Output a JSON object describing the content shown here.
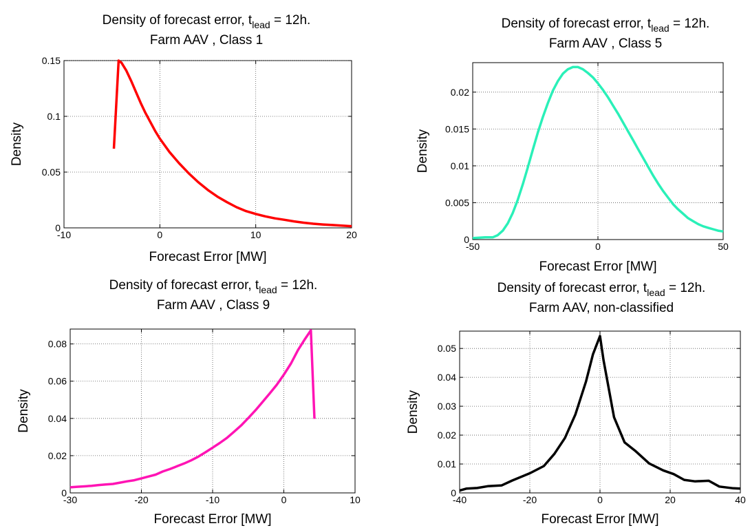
{
  "chart_data": [
    {
      "type": "line",
      "title": {
        "prefix": "Density of forecast error, t",
        "subscript": "lead",
        "suffix": " = 12h.",
        "line2": "Farm AAV , Class 1"
      },
      "xlabel": "Forecast Error [MW]",
      "ylabel": "Density",
      "xlim": [
        -10,
        20
      ],
      "ylim": [
        0,
        0.15
      ],
      "xticks": [
        -10,
        0,
        10,
        20
      ],
      "yticks": [
        0,
        0.05,
        0.1,
        0.15
      ],
      "xtick_labels": [
        "-10",
        "0",
        "10",
        "20"
      ],
      "ytick_labels": [
        "0",
        "0.05",
        "0.1",
        "0.15"
      ],
      "grid": true,
      "color": "#ff0000",
      "series": [
        {
          "x": [
            -4.8,
            -4.3,
            -4.0,
            -3.5,
            -3.0,
            -2.5,
            -2.0,
            -1.5,
            -1.0,
            -0.5,
            0,
            1,
            2,
            3,
            4,
            5,
            6,
            7,
            8,
            9,
            10,
            11,
            12,
            13,
            14,
            15,
            16,
            17,
            18,
            19,
            20
          ],
          "y": [
            0.071,
            0.15,
            0.148,
            0.141,
            0.132,
            0.122,
            0.112,
            0.103,
            0.095,
            0.087,
            0.08,
            0.068,
            0.058,
            0.049,
            0.041,
            0.034,
            0.028,
            0.023,
            0.0185,
            0.015,
            0.0125,
            0.0103,
            0.0085,
            0.0072,
            0.0058,
            0.0046,
            0.0037,
            0.003,
            0.0025,
            0.002,
            0.0015
          ]
        }
      ]
    },
    {
      "type": "line",
      "title": {
        "prefix": "Density of forecast error, t",
        "subscript": "lead",
        "suffix": " = 12h.",
        "line2": "Farm AAV , Class 5"
      },
      "xlabel": "Forecast Error [MW]",
      "ylabel": "Density",
      "xlim": [
        -50,
        50
      ],
      "ylim": [
        0,
        0.024
      ],
      "xticks": [
        -50,
        0,
        50
      ],
      "yticks": [
        0,
        0.005,
        0.01,
        0.015,
        0.02
      ],
      "xtick_labels": [
        "-50",
        "0",
        "50"
      ],
      "ytick_labels": [
        "0",
        "0.005",
        "0.01",
        "0.015",
        "0.02"
      ],
      "grid": true,
      "color": "#2af0b8",
      "series": [
        {
          "x": [
            -50,
            -45,
            -42,
            -40,
            -38,
            -36,
            -34,
            -32,
            -30,
            -28,
            -26,
            -24,
            -22,
            -20,
            -18,
            -16,
            -14,
            -12,
            -10,
            -8,
            -6,
            -4,
            -2,
            0,
            2,
            4,
            6,
            8,
            10,
            12,
            14,
            16,
            18,
            20,
            22,
            24,
            26,
            28,
            30,
            32,
            34,
            36,
            38,
            40,
            42,
            44,
            46,
            48,
            50
          ],
          "y": [
            0.0002,
            0.0003,
            0.0003,
            0.0006,
            0.0012,
            0.0022,
            0.0036,
            0.0054,
            0.0075,
            0.0098,
            0.0122,
            0.0145,
            0.0166,
            0.0185,
            0.0202,
            0.0215,
            0.0225,
            0.0231,
            0.0234,
            0.0234,
            0.0231,
            0.0226,
            0.022,
            0.0212,
            0.0203,
            0.0193,
            0.0182,
            0.0171,
            0.0159,
            0.0147,
            0.0135,
            0.0123,
            0.0111,
            0.0099,
            0.0087,
            0.0076,
            0.0066,
            0.0057,
            0.0048,
            0.0041,
            0.0035,
            0.0029,
            0.0025,
            0.0021,
            0.0018,
            0.0016,
            0.0014,
            0.0012,
            0.0011
          ]
        }
      ]
    },
    {
      "type": "line",
      "title": {
        "prefix": "Density of forecast error, t",
        "subscript": "lead",
        "suffix": " = 12h.",
        "line2": "Farm AAV , Class 9"
      },
      "xlabel": "Forecast Error [MW]",
      "ylabel": "Density",
      "xlim": [
        -30,
        10
      ],
      "ylim": [
        0,
        0.088
      ],
      "xticks": [
        -30,
        -20,
        -10,
        0,
        10
      ],
      "yticks": [
        0,
        0.02,
        0.04,
        0.06,
        0.08
      ],
      "xtick_labels": [
        "-30",
        "-20",
        "-10",
        "0",
        "10"
      ],
      "ytick_labels": [
        "0",
        "0.02",
        "0.04",
        "0.06",
        "0.08"
      ],
      "grid": true,
      "color": "#ff14b4",
      "series": [
        {
          "x": [
            -30,
            -29,
            -28,
            -27,
            -26,
            -25,
            -24,
            -23,
            -22,
            -21,
            -20,
            -19,
            -18,
            -17,
            -16,
            -15,
            -14,
            -13,
            -12,
            -11,
            -10,
            -9,
            -8,
            -7,
            -6,
            -5,
            -4,
            -3,
            -2,
            -1,
            0,
            1,
            2,
            3,
            3.8,
            4.3
          ],
          "y": [
            0.003,
            0.0033,
            0.0035,
            0.0038,
            0.0042,
            0.0045,
            0.0048,
            0.0055,
            0.0062,
            0.0068,
            0.0078,
            0.0088,
            0.0098,
            0.0115,
            0.0128,
            0.0143,
            0.0158,
            0.0175,
            0.0195,
            0.0218,
            0.0243,
            0.0268,
            0.0295,
            0.0328,
            0.0362,
            0.0402,
            0.0443,
            0.0488,
            0.0533,
            0.058,
            0.0635,
            0.0695,
            0.0768,
            0.0828,
            0.0873,
            0.0398
          ]
        }
      ]
    },
    {
      "type": "line",
      "title": {
        "prefix": "Density of forecast error, t",
        "subscript": "lead",
        "suffix": " = 12h.",
        "line2": "Farm AAV, non-classified"
      },
      "xlabel": "Forecast Error [MW]",
      "ylabel": "Density",
      "xlim": [
        -40,
        40
      ],
      "ylim": [
        0,
        0.056
      ],
      "xticks": [
        -40,
        -20,
        0,
        20,
        40
      ],
      "yticks": [
        0,
        0.01,
        0.02,
        0.03,
        0.04,
        0.05
      ],
      "xtick_labels": [
        "-40",
        "-20",
        "0",
        "20",
        "40"
      ],
      "ytick_labels": [
        "0",
        "0.01",
        "0.02",
        "0.03",
        "0.04",
        "0.05"
      ],
      "grid": true,
      "color": "#000000",
      "series": [
        {
          "x": [
            -40,
            -38,
            -35,
            -32,
            -28,
            -25,
            -20,
            -16,
            -13,
            -10,
            -7,
            -4,
            -2,
            0,
            1,
            4,
            7,
            10,
            14,
            18,
            21,
            24,
            27,
            31,
            34,
            38,
            40
          ],
          "y": [
            0.0008,
            0.0015,
            0.0017,
            0.0023,
            0.0026,
            0.0043,
            0.0068,
            0.0093,
            0.0135,
            0.019,
            0.0272,
            0.0385,
            0.048,
            0.0543,
            0.046,
            0.0262,
            0.0175,
            0.0146,
            0.0102,
            0.0078,
            0.0065,
            0.0045,
            0.004,
            0.0042,
            0.0022,
            0.0016,
            0.0015
          ]
        }
      ]
    }
  ]
}
